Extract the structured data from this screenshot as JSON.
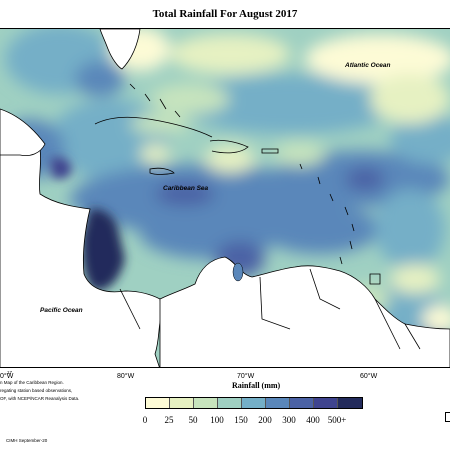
{
  "map": {
    "title": "Total Rainfall For August 2017",
    "labels": {
      "atlantic": "Atlantic Ocean",
      "caribbean": "Caribbean Sea",
      "pacific": "Pacific Ocean"
    },
    "longitudes": [
      "0°W",
      "80°W",
      "70°W",
      "60°W"
    ]
  },
  "legend": {
    "title": "Rainfall (mm)",
    "ticks": [
      "0",
      "25",
      "50",
      "100",
      "150",
      "200",
      "300",
      "400",
      "500+"
    ],
    "colors": [
      "#fdfbd6",
      "#e6f1c2",
      "#c7e4bd",
      "#9fd0c2",
      "#74afc7",
      "#5a87ba",
      "#4b62a5",
      "#3f448f",
      "#232b5c"
    ]
  },
  "notes": {
    "number": "17",
    "line1": "n Map of the Caribbean Region.",
    "line2": "regating station based observations,",
    "line3": "OF, with NCEP/NCAR Reanalysis Data.",
    "credit": "CIMH September-20"
  }
}
